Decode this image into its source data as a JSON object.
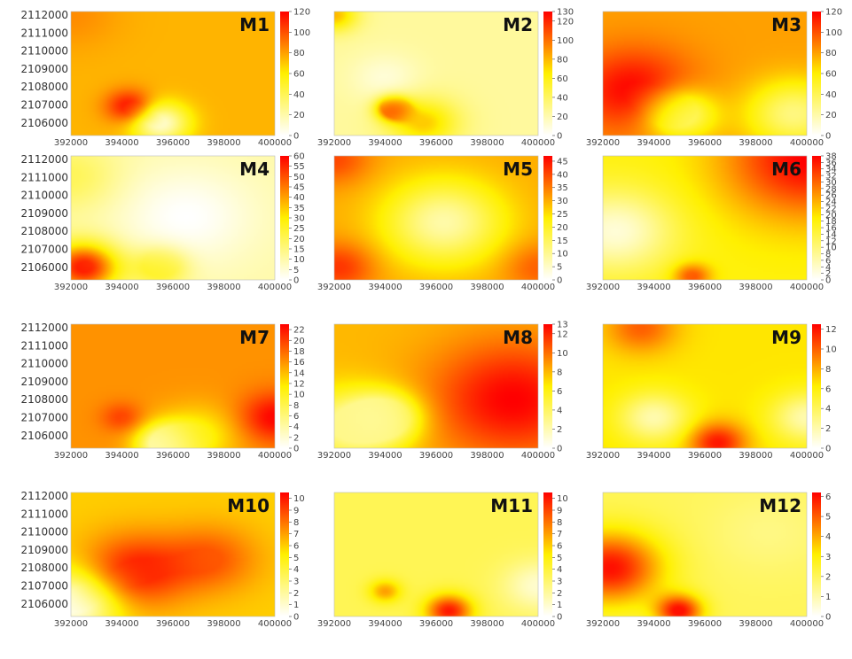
{
  "chart_data": [
    {
      "type": "heatmap",
      "title": "M1",
      "x_ticks": [
        "392000",
        "394000",
        "396000",
        "398000",
        "400000"
      ],
      "y_ticks": [
        "2112000",
        "2111000",
        "2110000",
        "2109000",
        "2108000",
        "2107000",
        "2106000"
      ],
      "colorbar_ticks": [
        "0",
        "20",
        "40",
        "60",
        "80",
        "100",
        "120"
      ],
      "zlim": [
        0,
        120
      ],
      "base_value": 75,
      "field": [
        {
          "x": 394300,
          "y": 2106900,
          "value": 120,
          "reach": 1000
        },
        {
          "x": 395500,
          "y": 2106000,
          "value": 10,
          "reach": 1200
        },
        {
          "x": 392000,
          "y": 2112000,
          "value": 85,
          "reach": 2000
        }
      ]
    },
    {
      "type": "heatmap",
      "title": "M2",
      "x_ticks": [
        "392000",
        "394000",
        "396000",
        "398000",
        "400000"
      ],
      "y_ticks": [
        "2112000",
        "2111000",
        "2110000",
        "2109000",
        "2108000",
        "2107000",
        "2106000"
      ],
      "colorbar_ticks": [
        "0",
        "20",
        "40",
        "60",
        "80",
        "100",
        "120",
        "130"
      ],
      "zlim": [
        0,
        130
      ],
      "base_value": 25,
      "field": [
        {
          "x": 394300,
          "y": 2106800,
          "value": 125,
          "reach": 700
        },
        {
          "x": 394000,
          "y": 2108500,
          "value": 10,
          "reach": 1500
        },
        {
          "x": 395500,
          "y": 2106000,
          "value": 75,
          "reach": 1500
        },
        {
          "x": 392000,
          "y": 2112000,
          "value": 80,
          "reach": 1000
        }
      ]
    },
    {
      "type": "heatmap",
      "title": "M3",
      "x_ticks": [
        "392000",
        "394000",
        "396000",
        "398000",
        "400000"
      ],
      "y_ticks": [
        "2112000",
        "2111000",
        "2110000",
        "2109000",
        "2108000",
        "2107000",
        "2106000"
      ],
      "colorbar_ticks": [
        "0",
        "20",
        "40",
        "60",
        "80",
        "100",
        "120"
      ],
      "zlim": [
        0,
        120
      ],
      "base_value": 80,
      "field": [
        {
          "x": 393200,
          "y": 2107800,
          "value": 120,
          "reach": 2500
        },
        {
          "x": 395000,
          "y": 2106500,
          "value": 20,
          "reach": 1500
        },
        {
          "x": 399500,
          "y": 2106500,
          "value": 30,
          "reach": 2000
        }
      ]
    },
    {
      "type": "heatmap",
      "title": "M4",
      "x_ticks": [
        "392000",
        "394000",
        "396000",
        "398000",
        "400000"
      ],
      "y_ticks": [
        "2112000",
        "2111000",
        "2110000",
        "2109000",
        "2108000",
        "2107000",
        "2106000"
      ],
      "colorbar_ticks": [
        "0",
        "5",
        "10",
        "15",
        "20",
        "25",
        "30",
        "35",
        "40",
        "45",
        "50",
        "55",
        "60"
      ],
      "zlim": [
        0,
        60
      ],
      "base_value": 10,
      "field": [
        {
          "x": 392500,
          "y": 2106000,
          "value": 58,
          "reach": 1500
        },
        {
          "x": 392000,
          "y": 2111000,
          "value": 20,
          "reach": 2000
        },
        {
          "x": 396500,
          "y": 2108800,
          "value": 0,
          "reach": 3000
        },
        {
          "x": 395500,
          "y": 2106000,
          "value": 30,
          "reach": 1200
        }
      ]
    },
    {
      "type": "heatmap",
      "title": "M5",
      "x_ticks": [
        "392000",
        "394000",
        "396000",
        "398000",
        "400000"
      ],
      "y_ticks": [
        "2112000",
        "2111000",
        "2110000",
        "2109000",
        "2108000",
        "2107000",
        "2106000"
      ],
      "colorbar_ticks": [
        "0",
        "5",
        "10",
        "15",
        "20",
        "25",
        "30",
        "35",
        "40",
        "45"
      ],
      "zlim": [
        0,
        47
      ],
      "base_value": 30,
      "field": [
        {
          "x": 396300,
          "y": 2108500,
          "value": 8,
          "reach": 2500
        },
        {
          "x": 392000,
          "y": 2112000,
          "value": 40,
          "reach": 1500
        },
        {
          "x": 392200,
          "y": 2106000,
          "value": 42,
          "reach": 1500
        },
        {
          "x": 400000,
          "y": 2106000,
          "value": 38,
          "reach": 1500
        }
      ]
    },
    {
      "type": "heatmap",
      "title": "M6",
      "x_ticks": [
        "392000",
        "394000",
        "396000",
        "398000",
        "400000"
      ],
      "y_ticks": [
        "2112000",
        "2111000",
        "2110000",
        "2109000",
        "2108000",
        "2107000",
        "2106000"
      ],
      "colorbar_ticks": [
        "0",
        "2",
        "4",
        "6",
        "8",
        "10",
        "12",
        "14",
        "16",
        "18",
        "20",
        "22",
        "24",
        "26",
        "28",
        "30",
        "32",
        "34",
        "36",
        "38"
      ],
      "zlim": [
        0,
        38
      ],
      "base_value": 18,
      "field": [
        {
          "x": 400000,
          "y": 2112000,
          "value": 38,
          "reach": 3500
        },
        {
          "x": 392500,
          "y": 2108000,
          "value": 3,
          "reach": 2500
        },
        {
          "x": 395500,
          "y": 2105500,
          "value": 32,
          "reach": 800
        }
      ]
    },
    {
      "type": "heatmap",
      "title": "M7",
      "x_ticks": [
        "392000",
        "394000",
        "396000",
        "398000",
        "400000"
      ],
      "y_ticks": [
        "2112000",
        "2111000",
        "2110000",
        "2109000",
        "2108000",
        "2107000",
        "2106000"
      ],
      "colorbar_ticks": [
        "0",
        "2",
        "4",
        "6",
        "8",
        "10",
        "12",
        "14",
        "16",
        "18",
        "20",
        "22"
      ],
      "zlim": [
        0,
        23
      ],
      "base_value": 16,
      "field": [
        {
          "x": 400000,
          "y": 2107000,
          "value": 23,
          "reach": 1500
        },
        {
          "x": 394000,
          "y": 2107000,
          "value": 20,
          "reach": 900
        },
        {
          "x": 395700,
          "y": 2105500,
          "value": 2,
          "reach": 1200
        },
        {
          "x": 397000,
          "y": 2106000,
          "value": 11,
          "reach": 1800
        }
      ]
    },
    {
      "type": "heatmap",
      "title": "M8",
      "x_ticks": [
        "392000",
        "394000",
        "396000",
        "398000",
        "400000"
      ],
      "y_ticks": [
        "2112000",
        "2111000",
        "2110000",
        "2109000",
        "2108000",
        "2107000",
        "2106000"
      ],
      "colorbar_ticks": [
        "0",
        "2",
        "4",
        "6",
        "8",
        "10",
        "12",
        "13"
      ],
      "zlim": [
        0,
        13
      ],
      "base_value": 8,
      "field": [
        {
          "x": 399000,
          "y": 2108000,
          "value": 13,
          "reach": 3500
        },
        {
          "x": 392500,
          "y": 2106500,
          "value": 3,
          "reach": 2200
        },
        {
          "x": 394000,
          "y": 2107000,
          "value": 2,
          "reach": 1500
        }
      ]
    },
    {
      "type": "heatmap",
      "title": "M9",
      "x_ticks": [
        "392000",
        "394000",
        "396000",
        "398000",
        "400000"
      ],
      "y_ticks": [
        "2112000",
        "2111000",
        "2110000",
        "2109000",
        "2108000",
        "2107000",
        "2106000"
      ],
      "colorbar_ticks": [
        "0",
        "2",
        "4",
        "6",
        "8",
        "10",
        "12"
      ],
      "zlim": [
        0,
        12.5
      ],
      "base_value": 6.5,
      "field": [
        {
          "x": 396500,
          "y": 2105600,
          "value": 12,
          "reach": 1200
        },
        {
          "x": 394000,
          "y": 2107000,
          "value": 2,
          "reach": 1500
        },
        {
          "x": 400000,
          "y": 2107000,
          "value": 2,
          "reach": 1500
        },
        {
          "x": 393500,
          "y": 2112000,
          "value": 10,
          "reach": 1500
        }
      ]
    },
    {
      "type": "heatmap",
      "title": "M10",
      "x_ticks": [
        "392000",
        "394000",
        "396000",
        "398000",
        "400000"
      ],
      "y_ticks": [
        "2112000",
        "2111000",
        "2110000",
        "2109000",
        "2108000",
        "2107000",
        "2106000"
      ],
      "colorbar_ticks": [
        "0",
        "1",
        "2",
        "3",
        "4",
        "5",
        "6",
        "7",
        "8",
        "9",
        "10"
      ],
      "zlim": [
        0,
        10.5
      ],
      "base_value": 6,
      "field": [
        {
          "x": 394500,
          "y": 2107800,
          "value": 10,
          "reach": 2200
        },
        {
          "x": 392000,
          "y": 2106000,
          "value": 0,
          "reach": 2000
        },
        {
          "x": 397500,
          "y": 2108500,
          "value": 8.5,
          "reach": 2000
        }
      ]
    },
    {
      "type": "heatmap",
      "title": "M11",
      "x_ticks": [
        "392000",
        "394000",
        "396000",
        "398000",
        "400000"
      ],
      "y_ticks": [
        "2112000",
        "2111000",
        "2110000",
        "2109000",
        "2108000",
        "2107000",
        "2106000"
      ],
      "colorbar_ticks": [
        "0",
        "1",
        "2",
        "3",
        "4",
        "5",
        "6",
        "7",
        "8",
        "9",
        "10"
      ],
      "zlim": [
        0,
        10.5
      ],
      "base_value": 3.5,
      "field": [
        {
          "x": 396500,
          "y": 2105600,
          "value": 10,
          "reach": 1000
        },
        {
          "x": 394000,
          "y": 2106700,
          "value": 7,
          "reach": 700
        },
        {
          "x": 400000,
          "y": 2107000,
          "value": 1,
          "reach": 1500
        }
      ]
    },
    {
      "type": "heatmap",
      "title": "M12",
      "x_ticks": [
        "392000",
        "394000",
        "396000",
        "398000",
        "400000"
      ],
      "y_ticks": [
        "2112000",
        "2111000",
        "2110000",
        "2109000",
        "2108000",
        "2107000",
        "2106000"
      ],
      "colorbar_ticks": [
        "0",
        "1",
        "2",
        "3",
        "4",
        "5",
        "6"
      ],
      "zlim": [
        0,
        6.2
      ],
      "base_value": 2,
      "field": [
        {
          "x": 392300,
          "y": 2108000,
          "value": 6,
          "reach": 2200
        },
        {
          "x": 395000,
          "y": 2105600,
          "value": 6,
          "reach": 1000
        },
        {
          "x": 398500,
          "y": 2110000,
          "value": 1.5,
          "reach": 2500
        }
      ]
    }
  ]
}
